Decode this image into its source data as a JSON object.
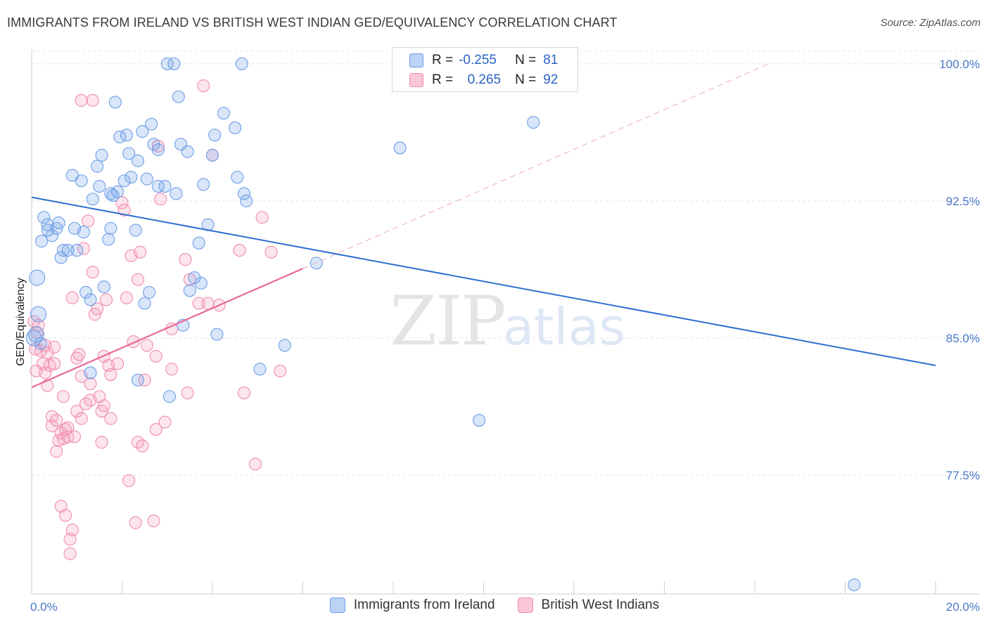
{
  "header": {
    "title": "IMMIGRANTS FROM IRELAND VS BRITISH WEST INDIAN GED/EQUIVALENCY CORRELATION CHART",
    "source": "Source: ZipAtlas.com"
  },
  "legend": {
    "r_label": "R =",
    "n_label": "N =",
    "series1": {
      "r": "-0.255",
      "n": "81"
    },
    "series2": {
      "r": "0.265",
      "n": "92"
    }
  },
  "watermark": {
    "zip": "ZIP",
    "atlas": "atlas"
  },
  "chart_data": {
    "type": "scatter",
    "title": "IMMIGRANTS FROM IRELAND VS BRITISH WEST INDIAN GED/EQUIVALENCY CORRELATION CHART",
    "ylabel": "GED/Equivalency",
    "xlabel": "",
    "xlim": [
      0,
      20
    ],
    "ylim": [
      71.0,
      100.8
    ],
    "x_tick_labels": [
      "0.0%",
      "20.0%"
    ],
    "y_ticks": [
      77.5,
      85.0,
      92.5,
      100.0
    ],
    "y_tick_labels": [
      "77.5%",
      "85.0%",
      "92.5%",
      "100.0%"
    ],
    "grid": true,
    "legend_position": "top-center",
    "colors": {
      "series1": "#6f9ee6",
      "series2": "#f08cb0",
      "line1": "#2f6fd1",
      "line2": "#e8679a",
      "dashed": "#e9a6bf"
    },
    "series": [
      {
        "name": "Immigrants from Ireland",
        "r": -0.255,
        "n": 81,
        "trend": {
          "x": [
            0.0,
            20.0
          ],
          "y": [
            92.7,
            83.5
          ]
        },
        "points": [
          [
            0.12,
            88.3
          ],
          [
            0.15,
            86.3
          ],
          [
            0.2,
            84.7
          ],
          [
            0.22,
            90.3
          ],
          [
            0.27,
            91.6
          ],
          [
            0.35,
            91.2
          ],
          [
            0.36,
            90.9
          ],
          [
            0.45,
            90.6
          ],
          [
            0.55,
            91.0
          ],
          [
            0.6,
            91.3
          ],
          [
            0.65,
            89.4
          ],
          [
            0.7,
            89.8
          ],
          [
            0.8,
            89.8
          ],
          [
            0.9,
            93.9
          ],
          [
            0.95,
            91.0
          ],
          [
            1.0,
            89.8
          ],
          [
            1.1,
            93.6
          ],
          [
            1.15,
            90.8
          ],
          [
            1.2,
            87.5
          ],
          [
            1.3,
            87.1
          ],
          [
            1.3,
            83.1
          ],
          [
            1.35,
            92.6
          ],
          [
            1.45,
            94.4
          ],
          [
            1.5,
            93.3
          ],
          [
            1.55,
            95.0
          ],
          [
            1.6,
            87.8
          ],
          [
            1.7,
            90.4
          ],
          [
            1.75,
            91.0
          ],
          [
            1.8,
            92.8
          ],
          [
            1.85,
            97.9
          ],
          [
            1.9,
            93.0
          ],
          [
            1.95,
            96.0
          ],
          [
            2.05,
            93.6
          ],
          [
            2.1,
            96.1
          ],
          [
            2.15,
            95.1
          ],
          [
            2.2,
            93.8
          ],
          [
            2.3,
            90.9
          ],
          [
            2.35,
            94.7
          ],
          [
            2.35,
            82.7
          ],
          [
            2.45,
            96.3
          ],
          [
            2.5,
            86.9
          ],
          [
            2.55,
            93.7
          ],
          [
            2.6,
            87.5
          ],
          [
            2.65,
            96.7
          ],
          [
            2.7,
            95.6
          ],
          [
            2.8,
            93.3
          ],
          [
            2.8,
            95.3
          ],
          [
            2.95,
            93.3
          ],
          [
            3.0,
            100.0
          ],
          [
            3.05,
            81.8
          ],
          [
            3.15,
            100.0
          ],
          [
            3.2,
            92.9
          ],
          [
            3.25,
            98.2
          ],
          [
            3.3,
            95.6
          ],
          [
            3.35,
            85.7
          ],
          [
            3.45,
            95.2
          ],
          [
            3.5,
            87.6
          ],
          [
            3.6,
            88.3
          ],
          [
            3.7,
            90.2
          ],
          [
            3.75,
            88.0
          ],
          [
            3.8,
            93.4
          ],
          [
            3.9,
            91.2
          ],
          [
            4.0,
            95.0
          ],
          [
            4.05,
            96.1
          ],
          [
            4.1,
            85.2
          ],
          [
            4.25,
            97.3
          ],
          [
            4.5,
            96.5
          ],
          [
            4.55,
            93.8
          ],
          [
            4.65,
            100.0
          ],
          [
            4.7,
            92.9
          ],
          [
            4.75,
            92.5
          ],
          [
            5.05,
            83.3
          ],
          [
            5.6,
            84.6
          ],
          [
            6.3,
            89.1
          ],
          [
            8.15,
            95.4
          ],
          [
            9.9,
            80.5
          ],
          [
            11.1,
            96.8
          ],
          [
            18.2,
            71.5
          ],
          [
            0.05,
            85.0
          ],
          [
            0.1,
            85.2
          ],
          [
            1.75,
            92.9
          ]
        ]
      },
      {
        "name": "British West Indians",
        "r": 0.265,
        "n": 92,
        "trend": {
          "x": [
            0.0,
            6.0
          ],
          "y": [
            82.3,
            88.8
          ]
        },
        "dashed_trend": {
          "x": [
            6.0,
            16.3
          ],
          "y": [
            88.8,
            100.0
          ]
        },
        "points": [
          [
            0.05,
            85.9
          ],
          [
            0.08,
            84.4
          ],
          [
            0.1,
            83.2
          ],
          [
            0.12,
            85.3
          ],
          [
            0.15,
            85.7
          ],
          [
            0.2,
            84.3
          ],
          [
            0.25,
            83.6
          ],
          [
            0.3,
            83.1
          ],
          [
            0.3,
            84.6
          ],
          [
            0.35,
            84.2
          ],
          [
            0.35,
            82.4
          ],
          [
            0.4,
            83.5
          ],
          [
            0.45,
            80.7
          ],
          [
            0.45,
            80.2
          ],
          [
            0.5,
            84.5
          ],
          [
            0.55,
            80.5
          ],
          [
            0.55,
            78.8
          ],
          [
            0.6,
            79.4
          ],
          [
            0.65,
            79.8
          ],
          [
            0.65,
            75.8
          ],
          [
            0.7,
            81.8
          ],
          [
            0.7,
            79.5
          ],
          [
            0.75,
            80.0
          ],
          [
            0.75,
            75.3
          ],
          [
            0.8,
            79.6
          ],
          [
            0.8,
            80.1
          ],
          [
            0.85,
            74.0
          ],
          [
            0.85,
            73.2
          ],
          [
            0.9,
            74.5
          ],
          [
            0.9,
            87.2
          ],
          [
            0.95,
            79.6
          ],
          [
            1.0,
            81.0
          ],
          [
            1.0,
            83.9
          ],
          [
            1.05,
            84.1
          ],
          [
            1.1,
            80.6
          ],
          [
            1.1,
            82.9
          ],
          [
            1.15,
            89.9
          ],
          [
            1.2,
            81.4
          ],
          [
            1.25,
            91.4
          ],
          [
            1.3,
            82.5
          ],
          [
            1.3,
            81.6
          ],
          [
            1.35,
            88.6
          ],
          [
            1.4,
            86.3
          ],
          [
            1.45,
            86.6
          ],
          [
            1.5,
            81.8
          ],
          [
            1.55,
            79.3
          ],
          [
            1.55,
            81.0
          ],
          [
            1.6,
            84.0
          ],
          [
            1.6,
            81.3
          ],
          [
            1.65,
            87.1
          ],
          [
            1.7,
            83.5
          ],
          [
            1.75,
            80.6
          ],
          [
            1.75,
            83.0
          ],
          [
            1.9,
            83.6
          ],
          [
            2.0,
            92.4
          ],
          [
            2.05,
            92.0
          ],
          [
            2.1,
            87.2
          ],
          [
            2.15,
            77.2
          ],
          [
            2.2,
            89.5
          ],
          [
            2.25,
            84.8
          ],
          [
            2.3,
            74.9
          ],
          [
            2.35,
            88.2
          ],
          [
            2.35,
            79.3
          ],
          [
            2.4,
            89.7
          ],
          [
            2.45,
            79.1
          ],
          [
            2.5,
            82.7
          ],
          [
            2.55,
            84.6
          ],
          [
            2.7,
            75.0
          ],
          [
            2.75,
            80.0
          ],
          [
            2.8,
            95.5
          ],
          [
            2.85,
            92.6
          ],
          [
            2.95,
            80.4
          ],
          [
            3.1,
            83.3
          ],
          [
            3.4,
            89.3
          ],
          [
            3.45,
            82.0
          ],
          [
            3.5,
            88.2
          ],
          [
            3.7,
            86.9
          ],
          [
            3.8,
            98.8
          ],
          [
            3.9,
            86.9
          ],
          [
            4.0,
            95.0
          ],
          [
            4.15,
            86.8
          ],
          [
            4.6,
            89.8
          ],
          [
            4.7,
            82.0
          ],
          [
            4.95,
            78.1
          ],
          [
            5.1,
            91.6
          ],
          [
            5.3,
            89.7
          ],
          [
            5.5,
            83.2
          ],
          [
            1.1,
            98.0
          ],
          [
            1.35,
            98.0
          ],
          [
            0.5,
            83.6
          ],
          [
            3.1,
            85.5
          ],
          [
            2.75,
            84.0
          ]
        ]
      }
    ]
  }
}
